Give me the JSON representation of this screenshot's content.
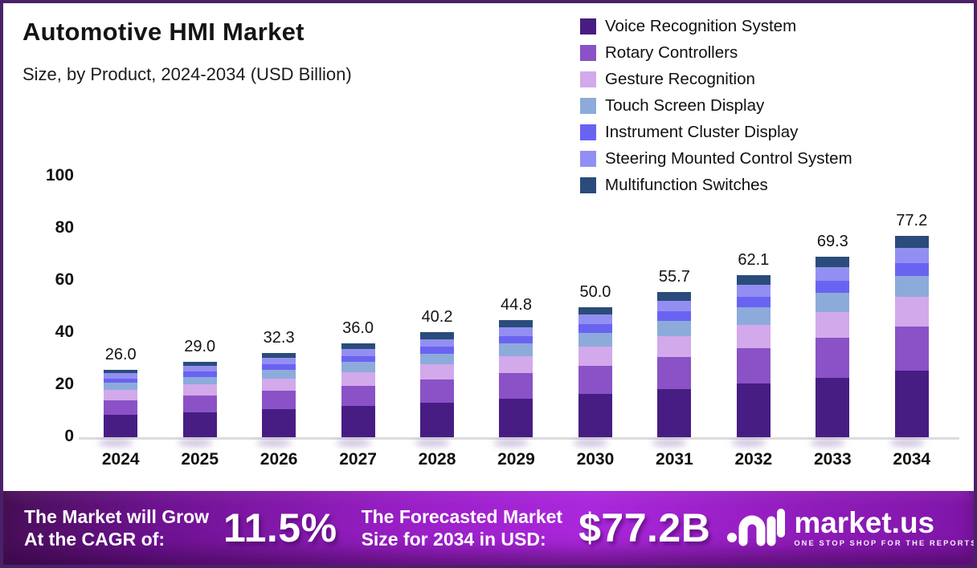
{
  "title": "Automotive HMI Market",
  "subtitle": "Size, by Product, 2024-2034 (USD Billion)",
  "chart_data": {
    "type": "bar",
    "stacked": true,
    "title": "Automotive HMI Market",
    "subtitle": "Size, by Product, 2024-2034 (USD Billion)",
    "unit": "USD Billion",
    "categories": [
      "2024",
      "2025",
      "2026",
      "2027",
      "2028",
      "2029",
      "2030",
      "2031",
      "2032",
      "2033",
      "2034"
    ],
    "totals": [
      "26.0",
      "29.0",
      "32.3",
      "36.0",
      "40.2",
      "44.8",
      "50.0",
      "55.7",
      "62.1",
      "69.3",
      "77.2"
    ],
    "ylim": [
      0,
      100
    ],
    "yticks": [
      0,
      20,
      40,
      60,
      80,
      100
    ],
    "grid": false,
    "legend_position": "top-right",
    "axis_color": "#DCDCDC",
    "series": [
      {
        "name": "Voice Recognition System",
        "color": "#471D83",
        "values": [
          8.6,
          9.6,
          10.7,
          11.9,
          13.3,
          14.8,
          16.5,
          18.4,
          20.5,
          22.9,
          25.5
        ]
      },
      {
        "name": "Rotary Controllers",
        "color": "#8A52C6",
        "values": [
          5.7,
          6.4,
          7.1,
          7.9,
          8.8,
          9.9,
          11.0,
          12.3,
          13.7,
          15.2,
          17.0
        ]
      },
      {
        "name": "Gesture Recognition",
        "color": "#D2A9EA",
        "values": [
          3.8,
          4.2,
          4.7,
          5.2,
          5.8,
          6.5,
          7.3,
          8.1,
          9.0,
          10.0,
          11.2
        ]
      },
      {
        "name": "Touch Screen Display",
        "color": "#8CABDB",
        "values": [
          2.7,
          3.0,
          3.4,
          3.8,
          4.2,
          4.7,
          5.2,
          5.8,
          6.5,
          7.3,
          8.1
        ]
      },
      {
        "name": "Instrument Cluster Display",
        "color": "#6A63F1",
        "values": [
          1.7,
          1.9,
          2.1,
          2.3,
          2.6,
          2.9,
          3.3,
          3.6,
          4.0,
          4.5,
          5.0
        ]
      },
      {
        "name": "Steering Mounted Control System",
        "color": "#938FF2",
        "values": [
          2.0,
          2.2,
          2.4,
          2.7,
          3.0,
          3.3,
          3.7,
          4.2,
          4.7,
          5.2,
          5.8
        ]
      },
      {
        "name": "Multifunction Switches",
        "color": "#2A4C7B",
        "values": [
          1.5,
          1.7,
          1.9,
          2.2,
          2.5,
          2.7,
          3.0,
          3.3,
          3.7,
          4.2,
          4.6
        ]
      }
    ]
  },
  "footer": {
    "cagr_label_line1": "The Market will Grow",
    "cagr_label_line2": "At the CAGR of:",
    "cagr_value": "11.5%",
    "forecast_label_line1": "The Forecasted Market",
    "forecast_label_line2": "Size for 2034 in USD:",
    "forecast_value": "$77.2B",
    "brand_name": "market.us",
    "brand_tagline": "ONE STOP SHOP FOR THE REPORTS"
  }
}
